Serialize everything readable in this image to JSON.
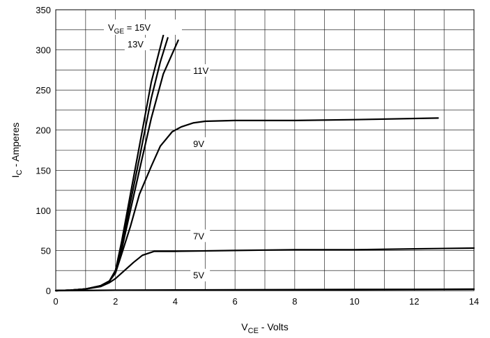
{
  "chart_data": {
    "type": "line",
    "xlabel": {
      "main": "V",
      "sub": "CE",
      "rest": " - Volts"
    },
    "ylabel": {
      "main": "I",
      "sub": "C",
      "rest": " - Amperes"
    },
    "xlim": [
      0,
      14
    ],
    "ylim": [
      0,
      350
    ],
    "xticks": [
      0,
      2,
      4,
      6,
      8,
      10,
      12,
      14
    ],
    "yticks": [
      0,
      50,
      100,
      150,
      200,
      250,
      300,
      350
    ],
    "x_minor_step": 1,
    "y_minor_step": 25,
    "grid": true,
    "series": [
      {
        "name": "15V",
        "points": [
          [
            0,
            0
          ],
          [
            0.5,
            0.5
          ],
          [
            1,
            2
          ],
          [
            1.5,
            6
          ],
          [
            1.8,
            12
          ],
          [
            2,
            25
          ],
          [
            2.2,
            60
          ],
          [
            2.5,
            120
          ],
          [
            2.8,
            180
          ],
          [
            3.2,
            260
          ],
          [
            3.6,
            318
          ]
        ]
      },
      {
        "name": "13V",
        "points": [
          [
            0,
            0
          ],
          [
            0.5,
            0.5
          ],
          [
            1,
            2
          ],
          [
            1.5,
            6
          ],
          [
            1.8,
            12
          ],
          [
            2,
            25
          ],
          [
            2.2,
            55
          ],
          [
            2.5,
            110
          ],
          [
            2.8,
            165
          ],
          [
            3.2,
            240
          ],
          [
            3.5,
            285
          ],
          [
            3.75,
            315
          ]
        ]
      },
      {
        "name": "11V",
        "points": [
          [
            0,
            0
          ],
          [
            0.5,
            0.5
          ],
          [
            1,
            2
          ],
          [
            1.5,
            6
          ],
          [
            1.8,
            12
          ],
          [
            2,
            25
          ],
          [
            2.2,
            50
          ],
          [
            2.5,
            100
          ],
          [
            2.8,
            150
          ],
          [
            3.2,
            215
          ],
          [
            3.6,
            270
          ],
          [
            4.1,
            312
          ]
        ]
      },
      {
        "name": "9V",
        "points": [
          [
            0,
            0
          ],
          [
            0.5,
            0.5
          ],
          [
            1,
            2
          ],
          [
            1.5,
            6
          ],
          [
            1.8,
            12
          ],
          [
            2,
            22
          ],
          [
            2.2,
            45
          ],
          [
            2.5,
            80
          ],
          [
            2.8,
            120
          ],
          [
            3.2,
            155
          ],
          [
            3.5,
            180
          ],
          [
            3.9,
            198
          ],
          [
            4.2,
            204
          ],
          [
            4.6,
            209
          ],
          [
            5,
            211
          ],
          [
            6,
            212
          ],
          [
            8,
            212
          ],
          [
            10,
            213
          ],
          [
            12.8,
            215
          ]
        ]
      },
      {
        "name": "7V",
        "points": [
          [
            0,
            0
          ],
          [
            0.5,
            0.5
          ],
          [
            1,
            2
          ],
          [
            1.5,
            5
          ],
          [
            1.8,
            10
          ],
          [
            2,
            15
          ],
          [
            2.3,
            25
          ],
          [
            2.6,
            35
          ],
          [
            2.9,
            44
          ],
          [
            3.3,
            49
          ],
          [
            4,
            49
          ],
          [
            6,
            50
          ],
          [
            8,
            51
          ],
          [
            10,
            51
          ],
          [
            12,
            52
          ],
          [
            14,
            53
          ]
        ]
      },
      {
        "name": "5V",
        "points": [
          [
            0,
            0
          ],
          [
            1,
            0.2
          ],
          [
            2,
            0.5
          ],
          [
            4,
            0.8
          ],
          [
            6,
            1
          ],
          [
            8,
            1.2
          ],
          [
            10,
            1.4
          ],
          [
            12,
            1.6
          ],
          [
            14,
            1.8
          ]
        ]
      }
    ],
    "annotations": [
      {
        "id": "vge",
        "main": "V",
        "sub": "GE",
        "rest": " = 15V",
        "x": 1.75,
        "y": 324
      },
      {
        "id": "13v",
        "main": "13V",
        "x": 2.4,
        "y": 303
      },
      {
        "id": "11v",
        "main": "11V",
        "x": 4.6,
        "y": 270
      },
      {
        "id": "9v",
        "main": "9V",
        "x": 4.6,
        "y": 179
      },
      {
        "id": "7v",
        "main": "7V",
        "x": 4.6,
        "y": 64
      },
      {
        "id": "5v",
        "main": "5V",
        "x": 4.6,
        "y": 15
      }
    ]
  }
}
